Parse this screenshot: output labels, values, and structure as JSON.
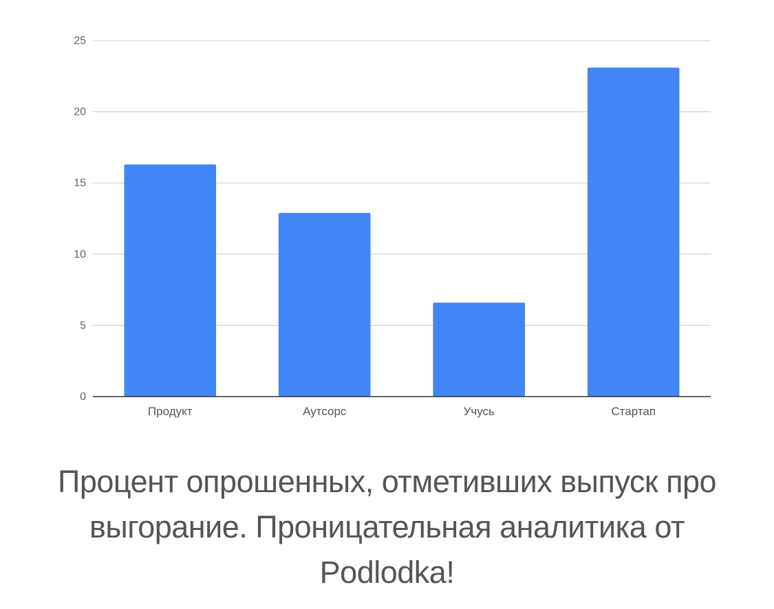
{
  "caption": "Процент опрошенных, отметивших выпуск про выгорание. Проницательная аналитика от Podlodka!",
  "colors": {
    "bar": "#4285F4",
    "grid": "#CCCCCC",
    "axis": "#333333",
    "text": "#555555"
  },
  "chart_data": {
    "type": "bar",
    "title": "",
    "xlabel": "",
    "ylabel": "",
    "categories": [
      "Продукт",
      "Аутсорс",
      "Учусь",
      "Стартап"
    ],
    "values": [
      16.3,
      12.9,
      6.6,
      23.1
    ],
    "ylim": [
      0,
      25
    ],
    "yticks": [
      "0",
      "5",
      "10",
      "15",
      "20",
      "25"
    ],
    "grid": true,
    "legend": "none"
  }
}
